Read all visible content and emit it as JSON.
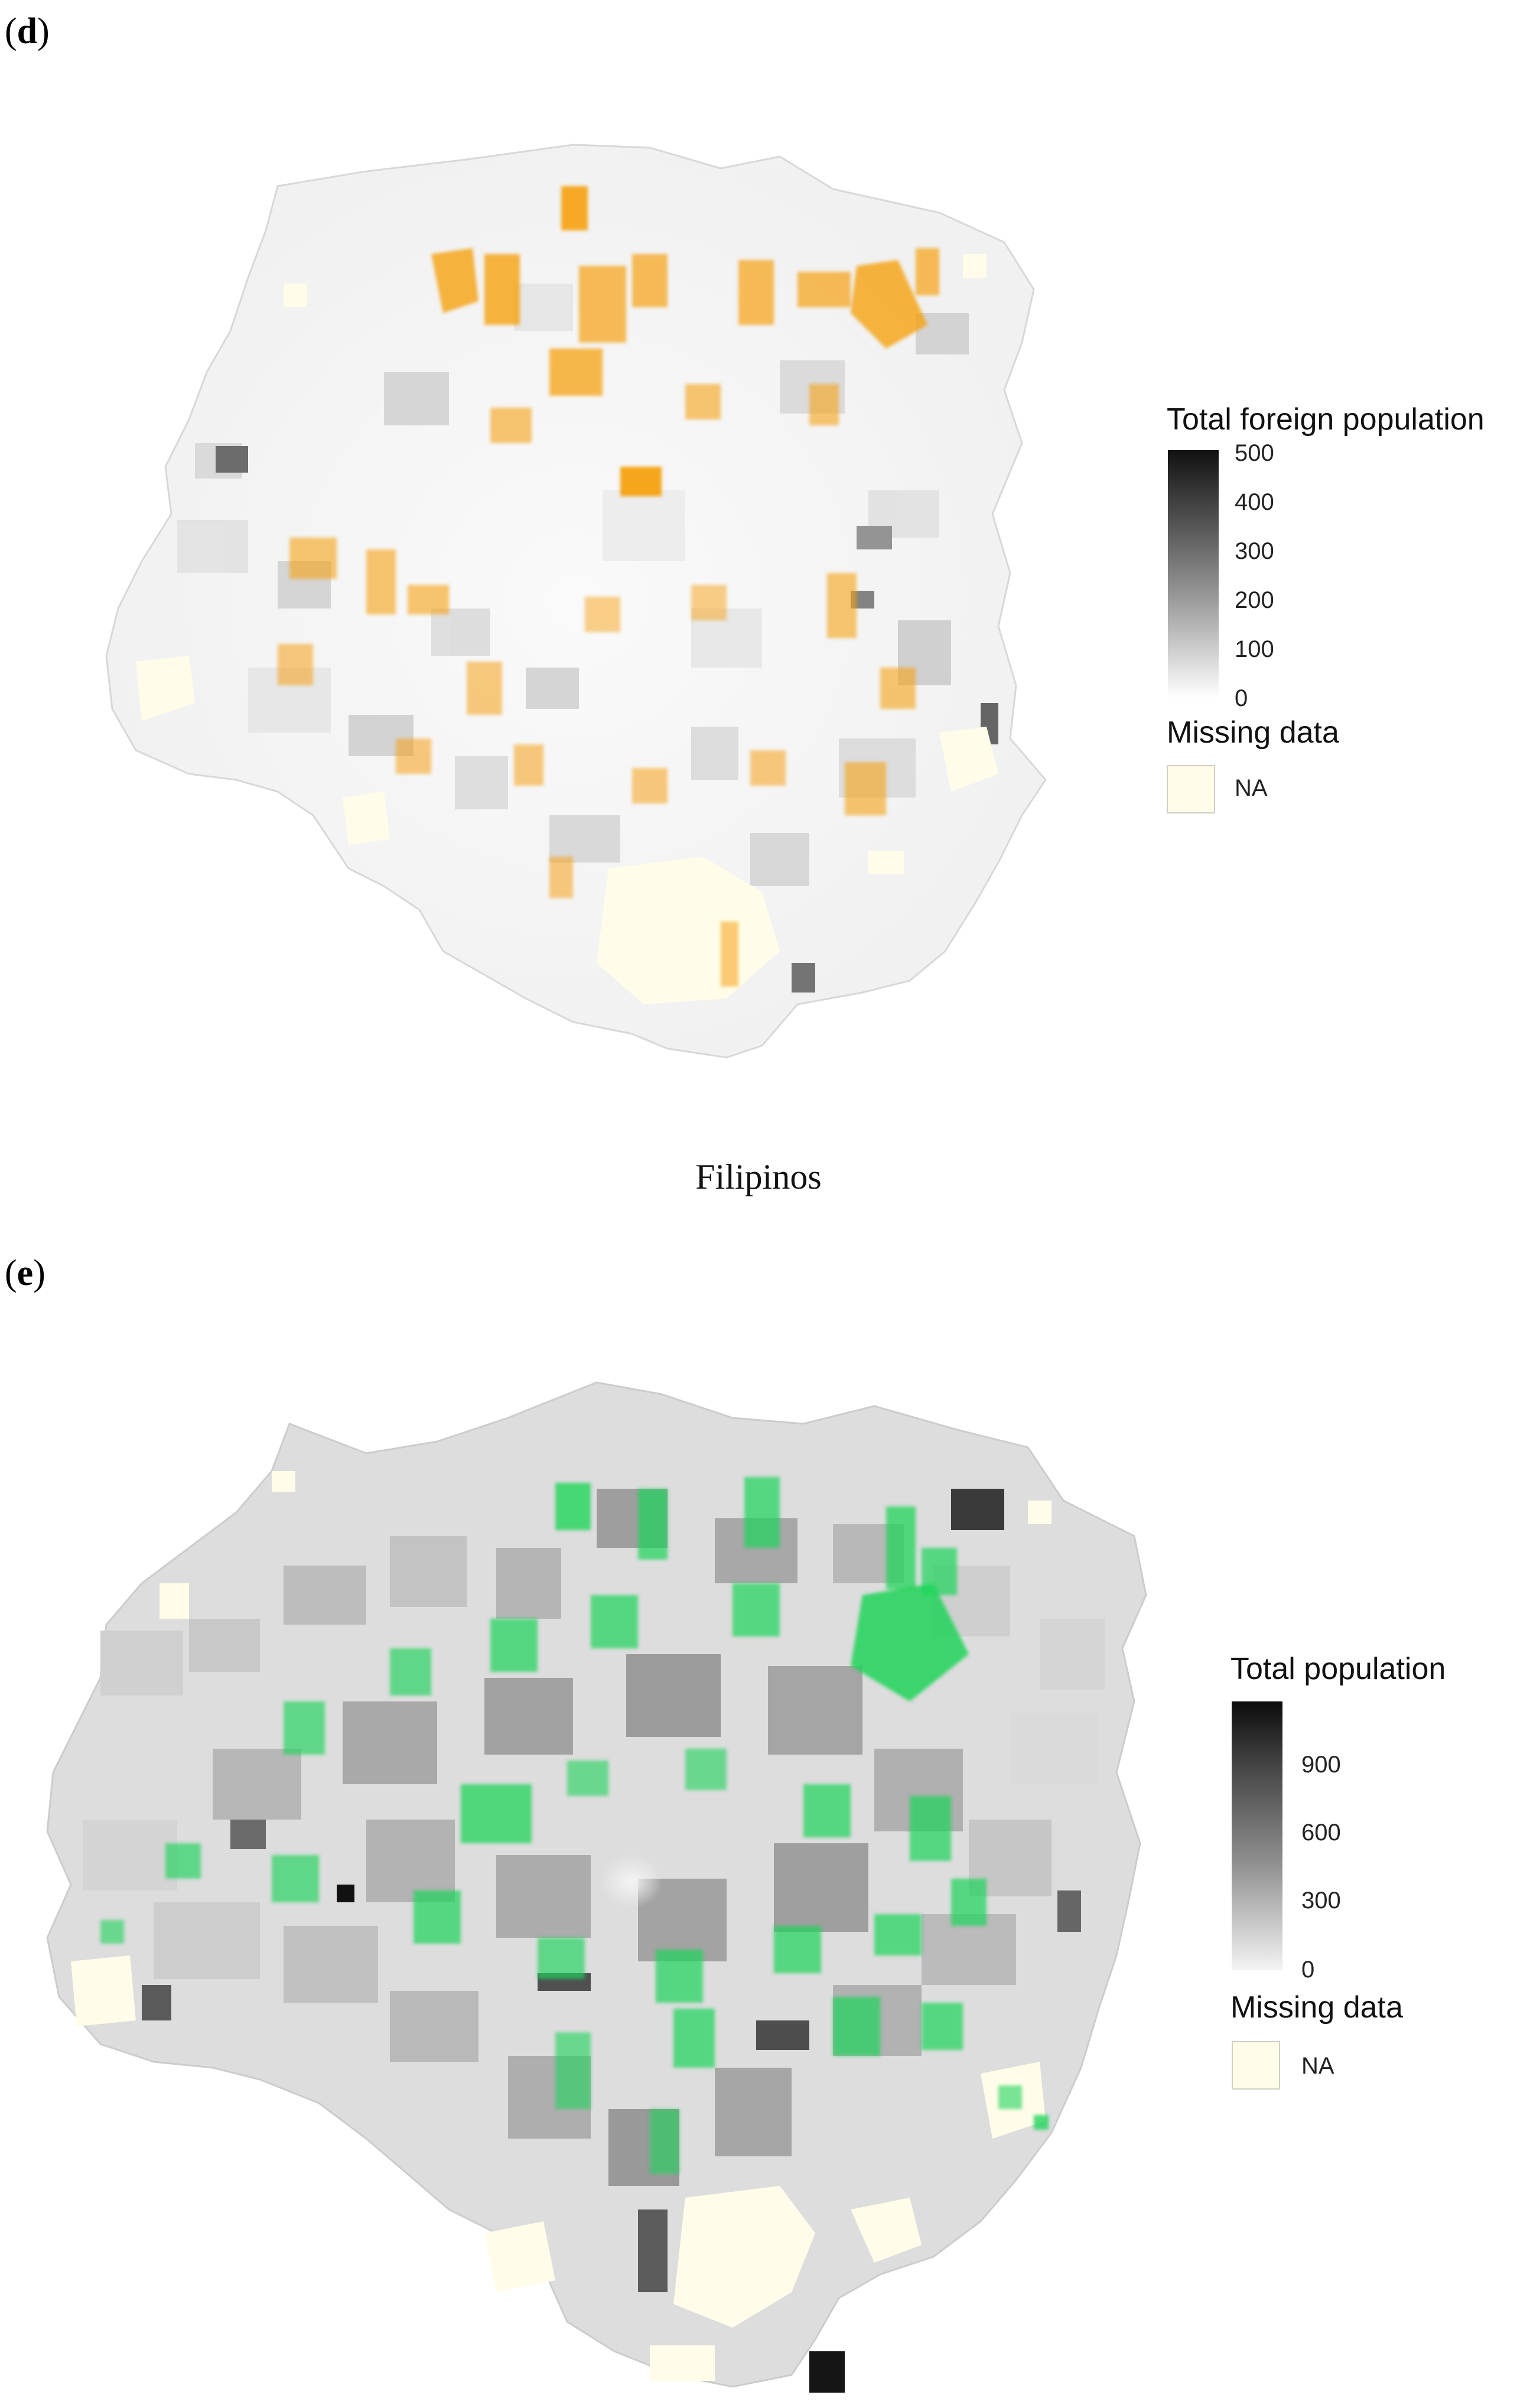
{
  "panel_d": {
    "letter": "d",
    "legend": {
      "title": "Total foreign population",
      "ticks": [
        "500",
        "400",
        "300",
        "200",
        "100",
        "0"
      ],
      "missing_title": "Missing data",
      "na_label": "NA"
    },
    "highlight_color": "#f5a10d",
    "na_color": "#fffde9"
  },
  "section_title": "Filipinos",
  "panel_e": {
    "letter": "e",
    "legend": {
      "title": "Total population",
      "ticks": [
        "900",
        "600",
        "300",
        "0"
      ],
      "missing_title": "Missing data",
      "na_label": "NA"
    },
    "highlight_color": "#1fd45a",
    "na_color": "#fffde9"
  }
}
